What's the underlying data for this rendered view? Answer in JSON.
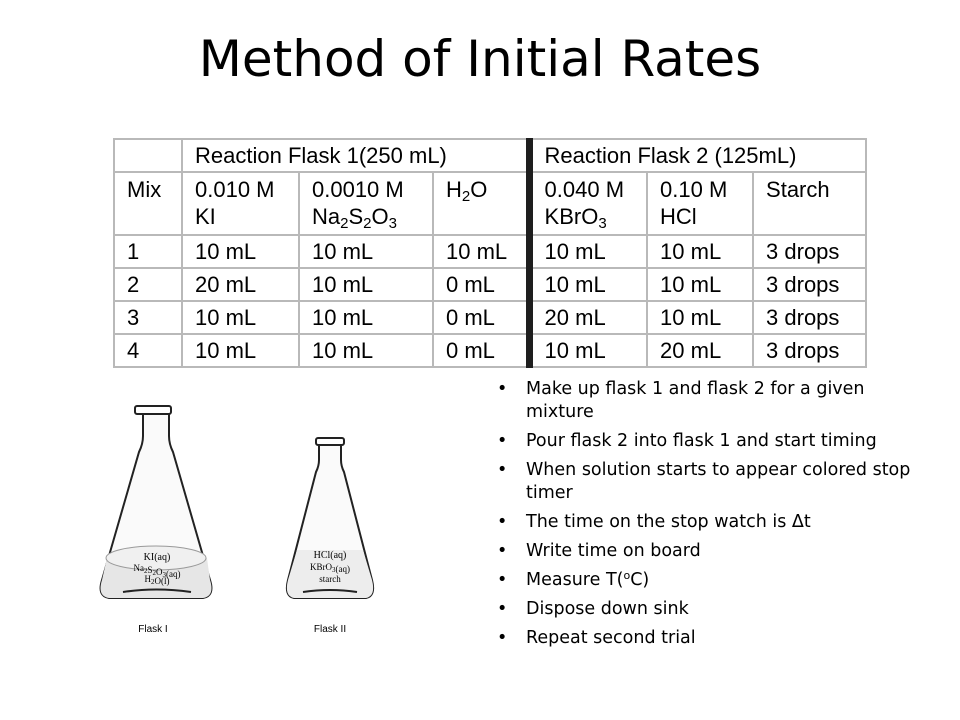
{
  "title": "Method of Initial Rates",
  "table": {
    "flask1_header": "Reaction Flask 1(250 mL)",
    "flask2_header": "Reaction Flask 2 (125mL)",
    "col_mix": "Mix",
    "col_ki_line1": "0.010 M",
    "col_ki_line2": "KI",
    "col_thio_line1": "0.0010 M",
    "col_thio_chem": "Na2S2O3",
    "col_water": "H2O",
    "col_kbro3_line1": "0.040 M",
    "col_kbro3_chem": "KBrO3",
    "col_hcl_line1": "0.10 M",
    "col_hcl_line2": "HCl",
    "col_starch": "Starch",
    "rows": [
      [
        "1",
        "10 mL",
        "10 mL",
        "10 mL",
        "10 mL",
        "10 mL",
        "3 drops"
      ],
      [
        "2",
        "20 mL",
        "10 mL",
        "0 mL",
        "10 mL",
        "10 mL",
        "3 drops"
      ],
      [
        "3",
        "10 mL",
        "10 mL",
        "0 mL",
        "20 mL",
        "10 mL",
        "3 drops"
      ],
      [
        "4",
        "10 mL",
        "10 mL",
        "0 mL",
        "10 mL",
        "20 mL",
        "3 drops"
      ]
    ]
  },
  "flasks": {
    "flask1_labels": [
      "KI(aq)",
      "Na2S2O3(aq)",
      "H2O(l)"
    ],
    "flask1_caption": "Flask I",
    "flask2_labels": [
      "HCl(aq)",
      "KBrO3(aq)",
      "starch"
    ],
    "flask2_caption": "Flask II"
  },
  "bullets": [
    "Make up flask 1 and flask 2 for a given mixture",
    "Pour flask 2 into flask 1 and start timing",
    "When solution starts to appear colored stop timer",
    "The time on the stop watch is Δt",
    "Write time on board",
    "Measure T(oC)",
    "Dispose down sink",
    "Repeat second trial"
  ]
}
